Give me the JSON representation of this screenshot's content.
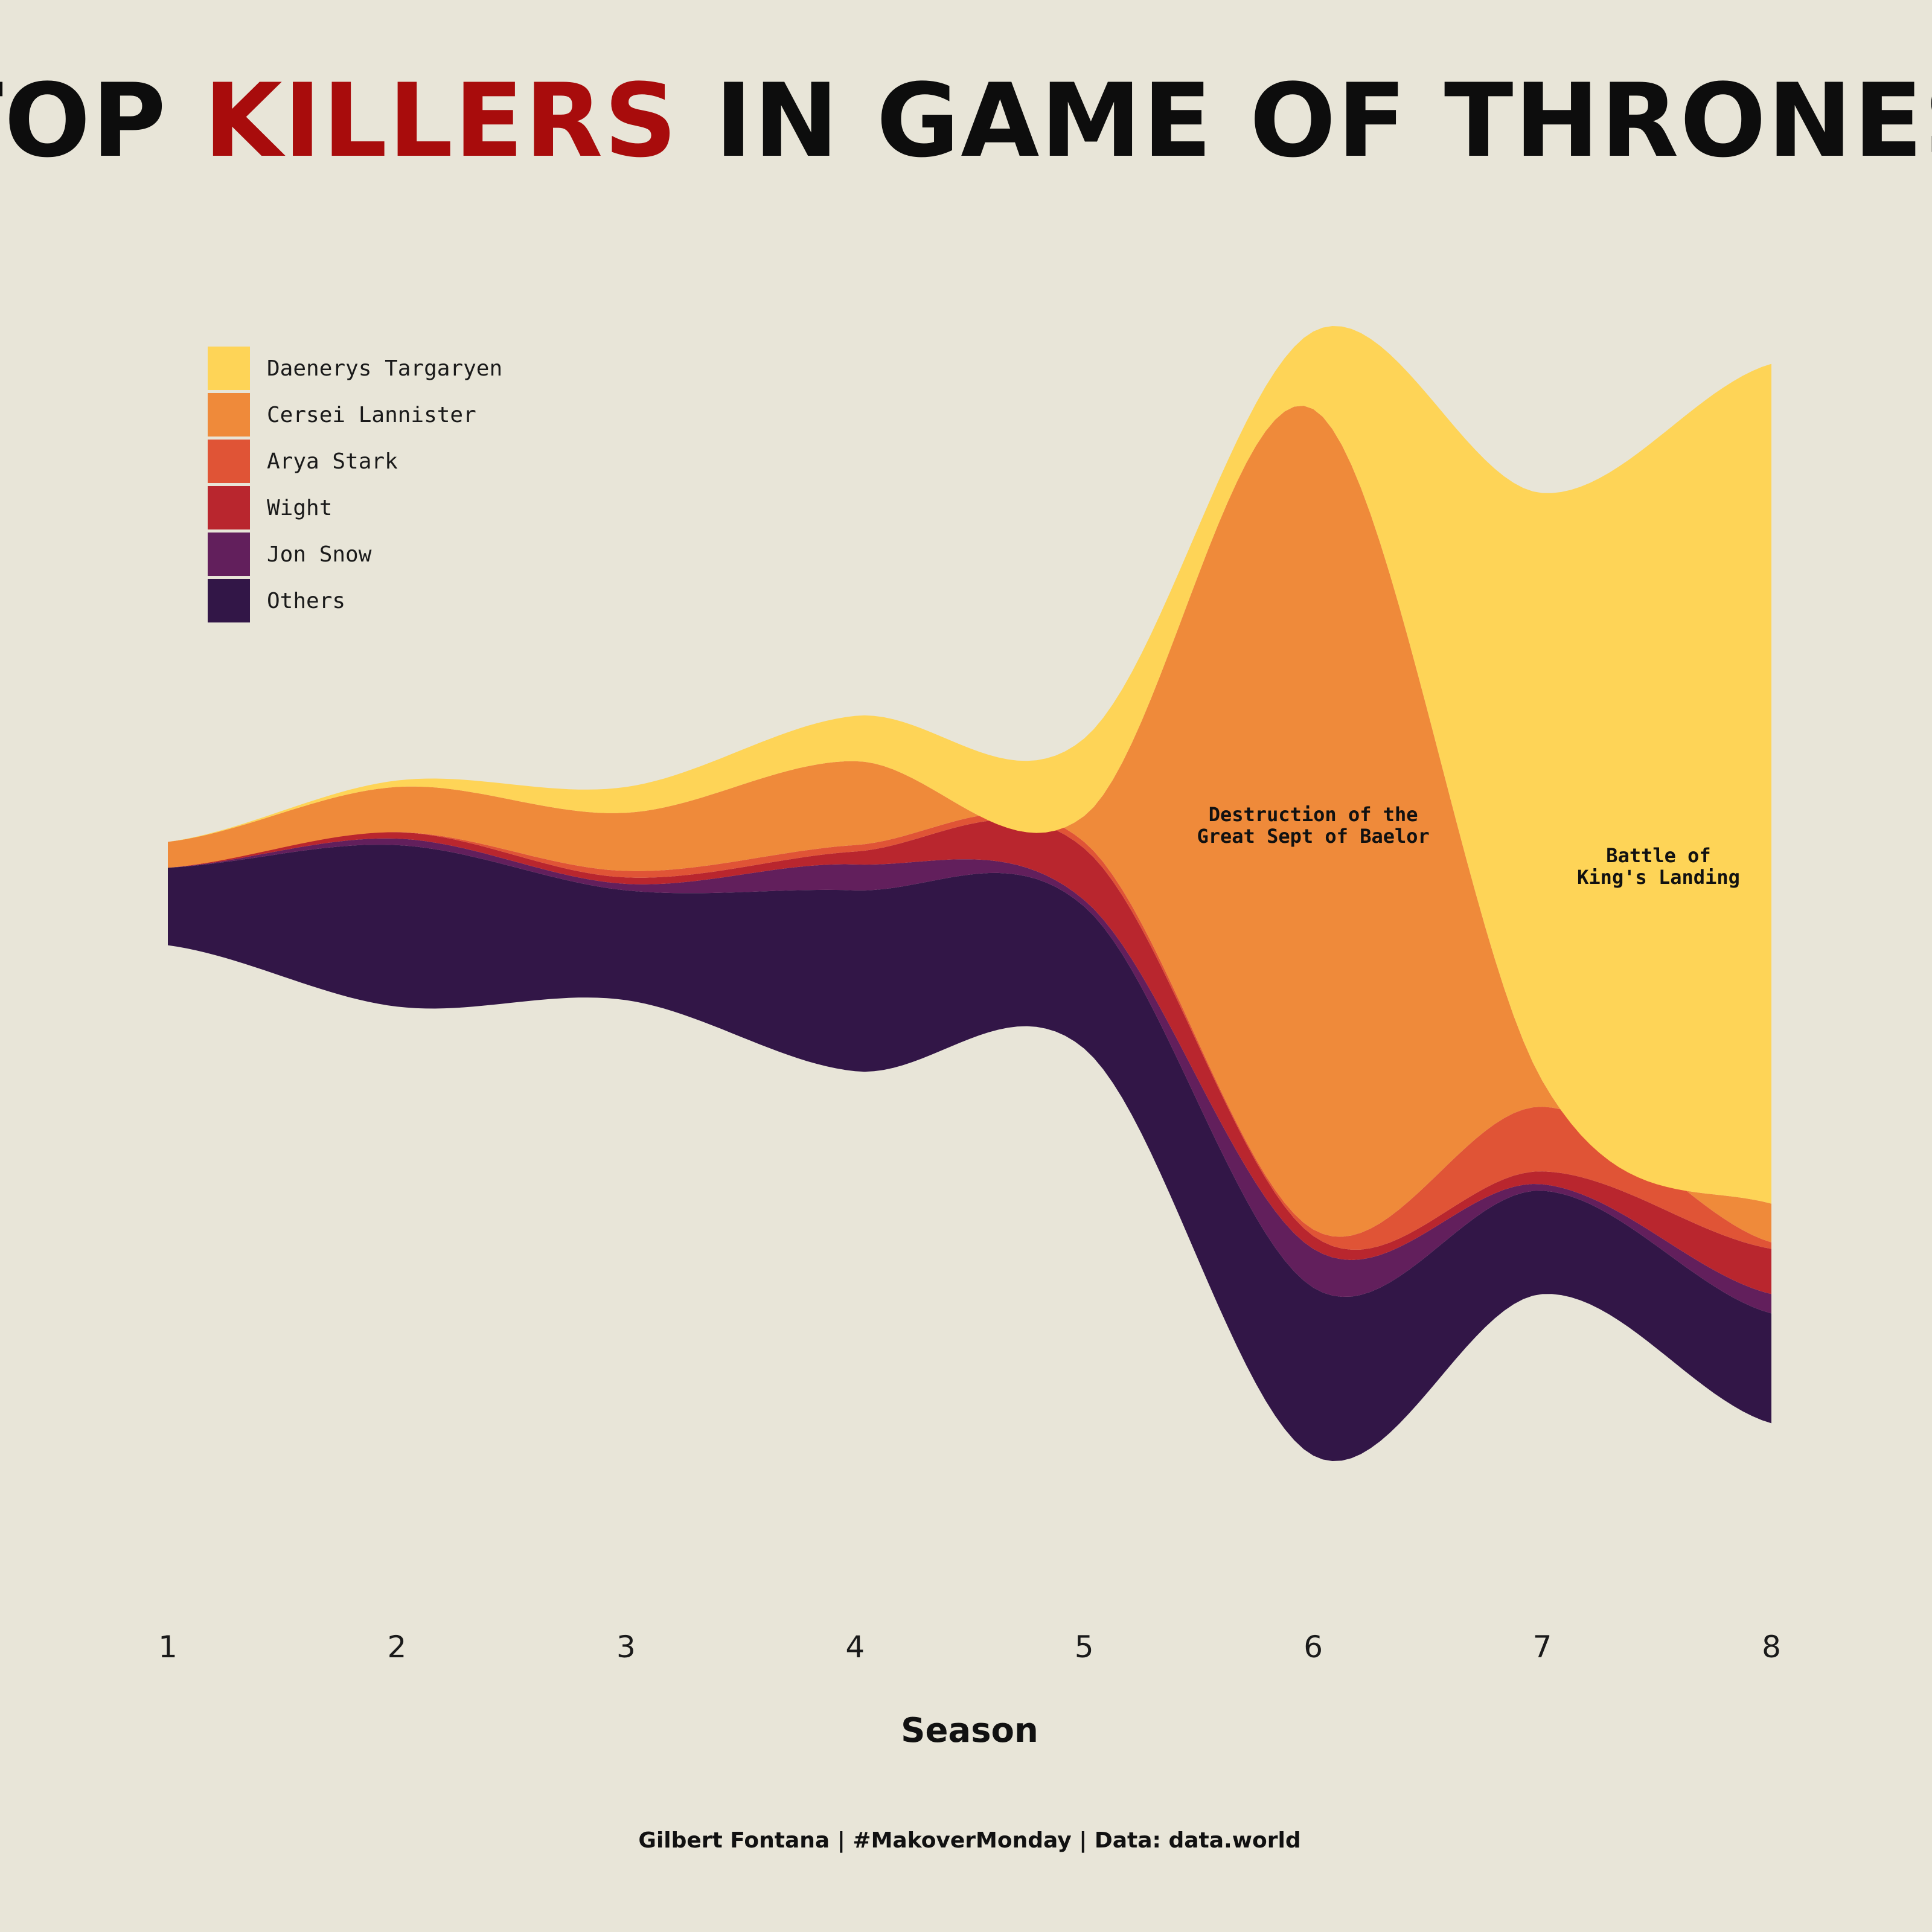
{
  "title": {
    "part1": "TOP ",
    "highlight": "KILLERS",
    "part2": " IN GAME OF THRONES",
    "color_main": "#0d0d0d",
    "color_highlight": "#a80c0c"
  },
  "credit": "Gilbert Fontana | #MakoverMonday | Data: data.world",
  "chart_data": {
    "type": "area",
    "style": "streamgraph",
    "xlabel": "Season",
    "x": [
      1,
      2,
      3,
      4,
      5,
      6,
      7,
      8
    ],
    "series": [
      {
        "name": "Daenerys Targaryen",
        "color": "#fed457",
        "values": [
          0,
          1,
          4,
          7,
          12,
          12,
          91,
          130
        ]
      },
      {
        "name": "Cersei Lannister",
        "color": "#ef8a3a",
        "values": [
          4,
          7,
          9,
          13,
          4,
          127,
          4,
          6
        ]
      },
      {
        "name": "Arya Stark",
        "color": "#e05436",
        "values": [
          0,
          0,
          1,
          1,
          1,
          1,
          10,
          1
        ]
      },
      {
        "name": "Wight",
        "color": "#b9262e",
        "values": [
          0,
          1,
          1,
          2,
          8,
          2,
          2,
          7
        ]
      },
      {
        "name": "Jon Snow",
        "color": "#621f5c",
        "values": [
          0,
          1,
          1,
          4,
          1,
          6,
          1,
          3
        ]
      },
      {
        "name": "Others",
        "color": "#321647",
        "values": [
          12,
          25,
          17,
          28,
          22,
          26,
          16,
          17
        ]
      }
    ],
    "annotations": [
      {
        "lines": [
          "Destruction of the",
          "Great Sept of Baelor"
        ],
        "season": 6
      },
      {
        "lines": [
          "Battle of",
          "King's Landing"
        ],
        "season": 7.5
      }
    ],
    "legend": "top-left",
    "grid": false
  }
}
